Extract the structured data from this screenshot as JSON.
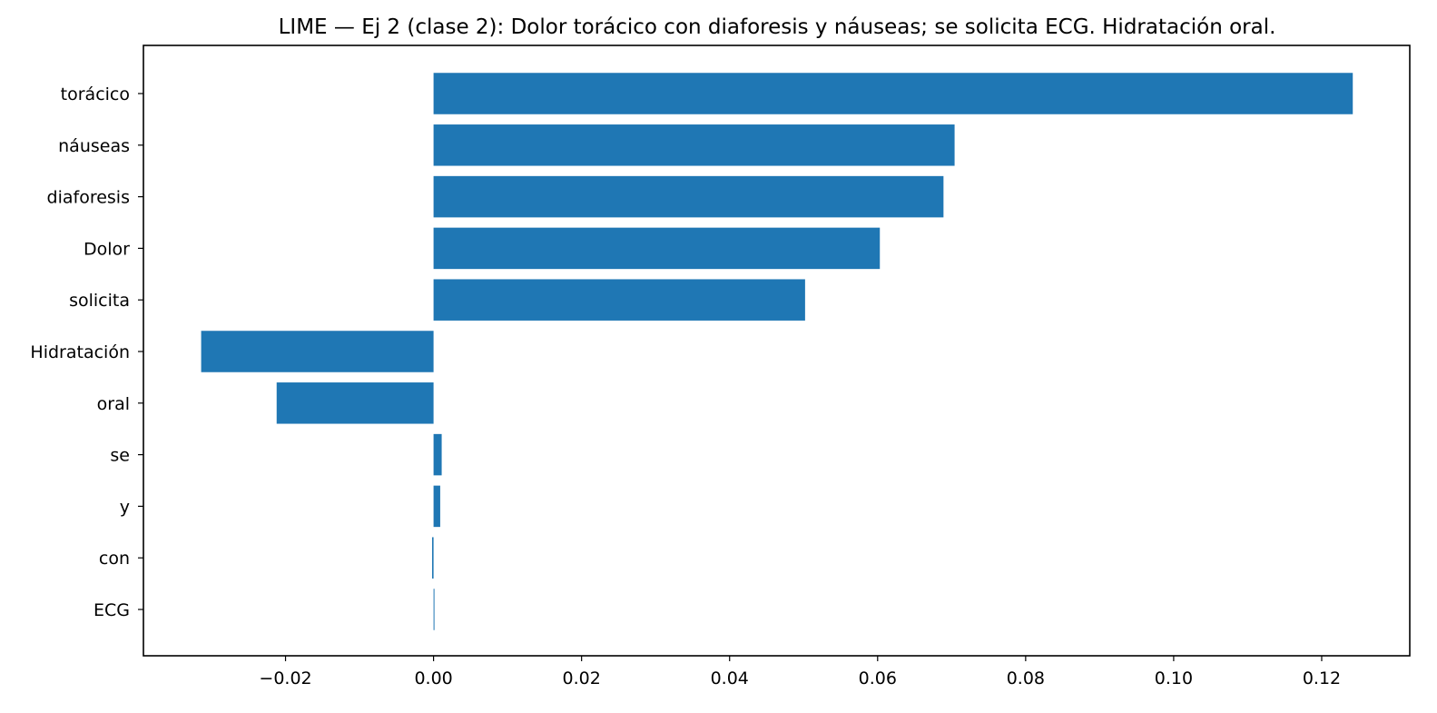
{
  "chart_data": {
    "type": "bar",
    "orientation": "horizontal",
    "title": "LIME — Ej 2 (clase 2): Dolor torácico con diaforesis y náuseas; se solicita ECG. Hidratación oral.",
    "xlabel": "",
    "ylabel": "",
    "categories": [
      "torácico",
      "náuseas",
      "diaforesis",
      "Dolor",
      "solicita",
      "Hidratación",
      "oral",
      "se",
      "y",
      "con",
      "ECG"
    ],
    "values": [
      0.1242,
      0.0704,
      0.0689,
      0.0603,
      0.0502,
      -0.0314,
      -0.0212,
      0.0011,
      0.0009,
      -0.0002,
      0.0001
    ],
    "xlim": [
      -0.0392,
      0.1319
    ],
    "xticks": [
      -0.02,
      0.0,
      0.02,
      0.04,
      0.06,
      0.08,
      0.1,
      0.12
    ],
    "xtick_labels": [
      "−0.02",
      "0.00",
      "0.02",
      "0.04",
      "0.06",
      "0.08",
      "0.10",
      "0.12"
    ],
    "bar_color": "#1f77b4",
    "grid": false,
    "legend": false
  }
}
